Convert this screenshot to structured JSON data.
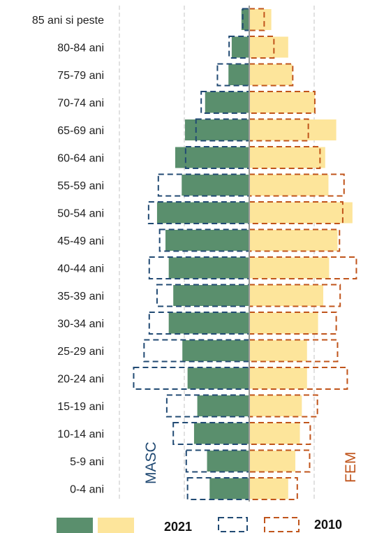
{
  "chart_data": {
    "type": "bar",
    "subtype": "population-pyramid",
    "categories": [
      "85 ani si peste",
      "80-84 ani",
      "75-79 ani",
      "70-74 ani",
      "65-69 ani",
      "60-64 ani",
      "55-59 ani",
      "50-54 ani",
      "45-49 ani",
      "40-44 ani",
      "35-39 ani",
      "30-34 ani",
      "25-29 ani",
      "20-24 ani",
      "15-19 ani",
      "10-14 ani",
      "5-9 ani",
      "0-4 ani"
    ],
    "side_labels": {
      "male": "MASC",
      "female": "FEM"
    },
    "series": [
      {
        "name": "2021",
        "sex": "male",
        "style": "filled",
        "values": [
          12,
          27,
          32,
          68,
          99,
          114,
          104,
          142,
          129,
          124,
          117,
          124,
          103,
          95,
          80,
          85,
          65,
          61
        ]
      },
      {
        "name": "2021",
        "sex": "female",
        "style": "filled",
        "values": [
          34,
          60,
          66,
          101,
          134,
          117,
          122,
          159,
          136,
          123,
          114,
          106,
          89,
          89,
          81,
          78,
          71,
          60
        ]
      },
      {
        "name": "2010",
        "sex": "male",
        "style": "dashed",
        "values": [
          10,
          31,
          49,
          74,
          82,
          98,
          140,
          155,
          138,
          154,
          142,
          154,
          162,
          178,
          127,
          117,
          97,
          95
        ]
      },
      {
        "name": "2010",
        "sex": "female",
        "style": "dashed",
        "values": [
          23,
          38,
          67,
          101,
          91,
          109,
          146,
          144,
          139,
          165,
          140,
          134,
          136,
          151,
          105,
          94,
          93,
          74
        ]
      }
    ],
    "xlim": [
      -200,
      200
    ],
    "gridlines_at": [
      -200,
      -100,
      100
    ],
    "grid": true,
    "legend": {
      "placement": "bottom",
      "entries": [
        "2021",
        "2010"
      ]
    },
    "colors": {
      "male_2021_fill": "#5a8f6d",
      "female_2021_fill": "#fde59b",
      "male_2010_outline": "#214a73",
      "female_2010_outline": "#c0541b",
      "male_label": "#214a73",
      "female_label": "#c0541b",
      "axis": "#9a9a9a",
      "grid": "#d7d7d7"
    }
  }
}
